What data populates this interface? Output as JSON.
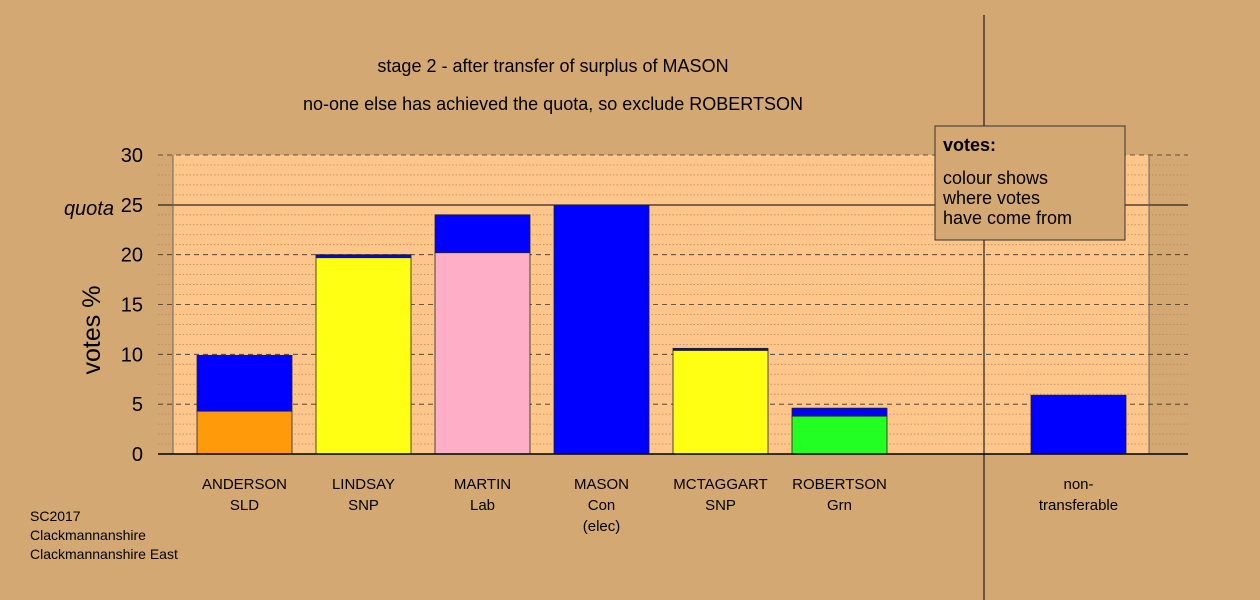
{
  "chart_data": {
    "type": "bar",
    "title": "stage 2 - after transfer of surplus of MASON",
    "subtitle": "no-one else has achieved the quota, so exclude ROBERTSON",
    "ylabel": "votes %",
    "ylim": [
      0,
      30
    ],
    "yticks": [
      0,
      5,
      10,
      15,
      20,
      25,
      30
    ],
    "quota": {
      "label": "quota",
      "value": 25
    },
    "candidates": [
      {
        "name": "ANDERSON",
        "party": "SLD",
        "note": "",
        "segments": [
          {
            "source": "SLD",
            "color": "#ff9a0a",
            "value": 4.3
          },
          {
            "source": "Con",
            "color": "#0000ff",
            "value": 5.6
          }
        ]
      },
      {
        "name": "LINDSAY",
        "party": "SNP",
        "note": "",
        "segments": [
          {
            "source": "SNP",
            "color": "#ffff14",
            "value": 19.7
          },
          {
            "source": "Con",
            "color": "#0000ff",
            "value": 0.3
          }
        ]
      },
      {
        "name": "MARTIN",
        "party": "Lab",
        "note": "",
        "segments": [
          {
            "source": "Lab",
            "color": "#ffaec8",
            "value": 20.2
          },
          {
            "source": "Con",
            "color": "#0000ff",
            "value": 3.8
          }
        ]
      },
      {
        "name": "MASON",
        "party": "Con",
        "note": "(elec)",
        "segments": [
          {
            "source": "Con",
            "color": "#0000ff",
            "value": 25.0
          }
        ]
      },
      {
        "name": "MCTAGGART",
        "party": "SNP",
        "note": "",
        "segments": [
          {
            "source": "SNP",
            "color": "#ffff14",
            "value": 10.4
          },
          {
            "source": "Con",
            "color": "#0000ff",
            "value": 0.2
          }
        ]
      },
      {
        "name": "ROBERTSON",
        "party": "Grn",
        "note": "",
        "segments": [
          {
            "source": "Grn",
            "color": "#22ff22",
            "value": 3.8
          },
          {
            "source": "Con",
            "color": "#0000ff",
            "value": 0.8
          }
        ]
      }
    ],
    "non_transferable": {
      "label_line1": "non-",
      "label_line2": "transferable",
      "segments": [
        {
          "source": "Con",
          "color": "#0000ff",
          "value": 5.9
        }
      ]
    },
    "legend": {
      "title": "votes:",
      "lines": [
        "colour shows",
        "where votes",
        "have come from"
      ],
      "placement": "top-right"
    },
    "colors": {
      "background": "#d4a873",
      "plot_area": "#ffc68c"
    }
  },
  "footer": {
    "line1": "SC2017",
    "line2": "Clackmannanshire",
    "line3": "Clackmannanshire East"
  }
}
